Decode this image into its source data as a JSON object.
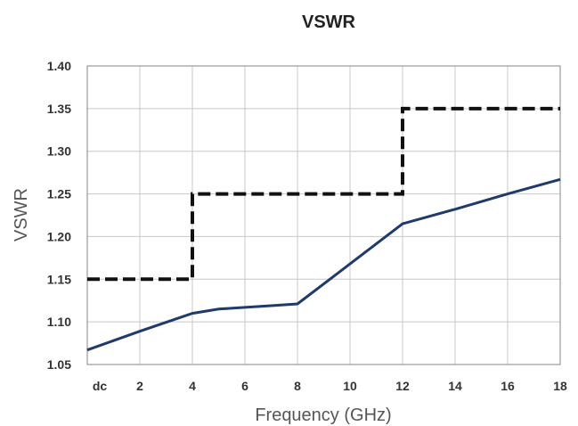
{
  "chart_data": {
    "type": "line",
    "title": "VSWR",
    "xlabel": "Frequency (GHz)",
    "ylabel": "VSWR",
    "xlim": [
      0,
      18
    ],
    "ylim": [
      1.05,
      1.4
    ],
    "x_ticks": [
      {
        "value": 0,
        "label": "dc"
      },
      {
        "value": 2,
        "label": "2"
      },
      {
        "value": 4,
        "label": "4"
      },
      {
        "value": 6,
        "label": "6"
      },
      {
        "value": 8,
        "label": "8"
      },
      {
        "value": 10,
        "label": "10"
      },
      {
        "value": 12,
        "label": "12"
      },
      {
        "value": 14,
        "label": "14"
      },
      {
        "value": 16,
        "label": "16"
      },
      {
        "value": 18,
        "label": "18"
      }
    ],
    "y_ticks": [
      {
        "value": 1.05,
        "label": "1.05"
      },
      {
        "value": 1.1,
        "label": "1.10"
      },
      {
        "value": 1.15,
        "label": "1.15"
      },
      {
        "value": 1.2,
        "label": "1.20"
      },
      {
        "value": 1.25,
        "label": "1.25"
      },
      {
        "value": 1.3,
        "label": "1.30"
      },
      {
        "value": 1.35,
        "label": "1.35"
      },
      {
        "value": 1.4,
        "label": "1.40"
      }
    ],
    "grid": true,
    "legend": "none",
    "series": [
      {
        "style": "dashed",
        "color": "#111111",
        "x": [
          0,
          4,
          4,
          12,
          12,
          18
        ],
        "y": [
          1.15,
          1.15,
          1.25,
          1.25,
          1.35,
          1.35
        ]
      },
      {
        "style": "solid",
        "color": "#1f3a6b",
        "x": [
          0,
          2,
          4,
          5,
          6,
          7,
          8,
          10,
          12,
          14,
          16,
          18
        ],
        "y": [
          1.067,
          1.089,
          1.11,
          1.115,
          1.117,
          1.119,
          1.121,
          1.168,
          1.215,
          1.232,
          1.25,
          1.267
        ]
      }
    ]
  }
}
